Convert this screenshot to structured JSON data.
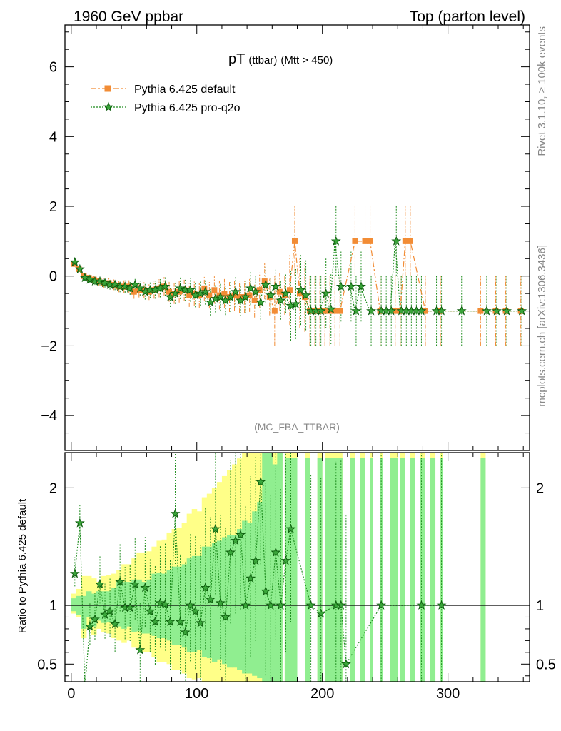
{
  "header": {
    "left": "1960 GeV ppbar",
    "right": "Top (parton level)"
  },
  "side": {
    "rivet": "Rivet 3.1.10, ≥ 100k events",
    "mcplots": "mcplots.cern.ch [arXiv:1306.3436]"
  },
  "chart_data": [
    {
      "type": "line",
      "title": "pT (ttbar) (Mtt > 450)",
      "title_main": "pT",
      "title_sub": "(ttbar)",
      "title_cut": "(Mtt > 450)",
      "watermark": "(MC_FBA_TTBAR)",
      "xlim": [
        -5,
        365
      ],
      "ylim": [
        -5,
        7.2
      ],
      "yticks": [
        -4,
        -2,
        0,
        2,
        4,
        6
      ],
      "ytick_labels": [
        "−4",
        "−2",
        "0",
        "2",
        "4",
        "6"
      ],
      "series": [
        {
          "name": "Pythia 6.425 default",
          "color": "#f28c35",
          "marker": "square",
          "points": [
            [
              2,
              0.35
            ],
            [
              6,
              0.2
            ],
            [
              10,
              0.0
            ],
            [
              14,
              -0.05
            ],
            [
              18,
              -0.1
            ],
            [
              22,
              -0.15
            ],
            [
              26,
              -0.2
            ],
            [
              30,
              -0.2
            ],
            [
              34,
              -0.25
            ],
            [
              38,
              -0.3
            ],
            [
              42,
              -0.3
            ],
            [
              46,
              -0.3
            ],
            [
              50,
              -0.45
            ],
            [
              54,
              -0.4
            ],
            [
              58,
              -0.4
            ],
            [
              62,
              -0.45
            ],
            [
              66,
              -0.4
            ],
            [
              70,
              -0.35
            ],
            [
              74,
              -0.3
            ],
            [
              78,
              -0.45
            ],
            [
              82,
              -0.5
            ],
            [
              86,
              -0.45
            ],
            [
              90,
              -0.4
            ],
            [
              94,
              -0.55
            ],
            [
              98,
              -0.5
            ],
            [
              102,
              -0.55
            ],
            [
              106,
              -0.35
            ],
            [
              110,
              -0.55
            ],
            [
              114,
              -0.4
            ],
            [
              118,
              -0.55
            ],
            [
              122,
              -0.5
            ],
            [
              126,
              -0.6
            ],
            [
              130,
              -0.55
            ],
            [
              134,
              -0.6
            ],
            [
              138,
              -0.6
            ],
            [
              142,
              -0.55
            ],
            [
              146,
              -0.7
            ],
            [
              150,
              -0.4
            ],
            [
              154,
              -0.15
            ],
            [
              158,
              -0.6
            ],
            [
              162,
              -1.0
            ],
            [
              166,
              -0.45
            ],
            [
              170,
              -0.55
            ],
            [
              174,
              -0.4
            ],
            [
              178,
              1.0
            ],
            [
              182,
              -0.5
            ],
            [
              186,
              -0.6
            ],
            [
              190,
              -1.0
            ],
            [
              194,
              -1.0
            ],
            [
              198,
              -1.0
            ],
            [
              202,
              -1.0
            ],
            [
              206,
              -1.0
            ],
            [
              210,
              -1.0
            ],
            [
              214,
              -1.0
            ],
            [
              226,
              1.0
            ],
            [
              234,
              1.0
            ],
            [
              238,
              1.0
            ],
            [
              246,
              -1.0
            ],
            [
              258,
              -1.0
            ],
            [
              262,
              -1.0
            ],
            [
              266,
              1.0
            ],
            [
              270,
              1.0
            ],
            [
              282,
              -1.0
            ],
            [
              294,
              -1.0
            ],
            [
              326,
              -1.0
            ],
            [
              338,
              -1.0
            ],
            [
              346,
              -1.0
            ],
            [
              358,
              -1.0
            ]
          ]
        },
        {
          "name": "Pythia 6.425 pro-q2o",
          "color": "#1a8a1a",
          "marker": "star",
          "points": [
            [
              2,
              0.4
            ],
            [
              6,
              0.2
            ],
            [
              10,
              -0.05
            ],
            [
              14,
              -0.1
            ],
            [
              18,
              -0.15
            ],
            [
              22,
              -0.15
            ],
            [
              26,
              -0.2
            ],
            [
              30,
              -0.25
            ],
            [
              34,
              -0.25
            ],
            [
              38,
              -0.3
            ],
            [
              42,
              -0.3
            ],
            [
              46,
              -0.35
            ],
            [
              50,
              -0.25
            ],
            [
              54,
              -0.35
            ],
            [
              58,
              -0.45
            ],
            [
              62,
              -0.4
            ],
            [
              66,
              -0.4
            ],
            [
              70,
              -0.35
            ],
            [
              74,
              -0.3
            ],
            [
              78,
              -0.6
            ],
            [
              82,
              -0.5
            ],
            [
              86,
              -0.35
            ],
            [
              90,
              -0.4
            ],
            [
              94,
              -0.4
            ],
            [
              98,
              -0.55
            ],
            [
              102,
              -0.5
            ],
            [
              106,
              -0.45
            ],
            [
              110,
              -0.75
            ],
            [
              114,
              -0.65
            ],
            [
              118,
              -0.6
            ],
            [
              122,
              -0.7
            ],
            [
              126,
              -0.6
            ],
            [
              130,
              -0.45
            ],
            [
              134,
              -0.7
            ],
            [
              138,
              -0.6
            ],
            [
              142,
              -0.35
            ],
            [
              146,
              -0.45
            ],
            [
              150,
              -0.75
            ],
            [
              154,
              -0.25
            ],
            [
              158,
              -0.55
            ],
            [
              162,
              -0.3
            ],
            [
              166,
              -0.7
            ],
            [
              170,
              -0.5
            ],
            [
              174,
              -0.85
            ],
            [
              178,
              -0.8
            ],
            [
              182,
              -0.4
            ],
            [
              186,
              -0.55
            ],
            [
              190,
              -1.0
            ],
            [
              194,
              -1.0
            ],
            [
              198,
              -1.0
            ],
            [
              202,
              -0.5
            ],
            [
              206,
              -0.95
            ],
            [
              210,
              1.0
            ],
            [
              214,
              -0.3
            ],
            [
              222,
              -0.3
            ],
            [
              226,
              -1.0
            ],
            [
              230,
              -0.3
            ],
            [
              238,
              -1.0
            ],
            [
              246,
              -1.0
            ],
            [
              250,
              -1.0
            ],
            [
              254,
              -1.0
            ],
            [
              258,
              1.0
            ],
            [
              262,
              -1.0
            ],
            [
              266,
              -1.0
            ],
            [
              270,
              -1.0
            ],
            [
              274,
              -1.0
            ],
            [
              278,
              -1.0
            ],
            [
              290,
              -1.0
            ],
            [
              294,
              -1.0
            ],
            [
              310,
              -1.0
            ],
            [
              330,
              -1.0
            ],
            [
              338,
              -1.0
            ],
            [
              346,
              -1.0
            ],
            [
              358,
              -1.0
            ]
          ]
        }
      ]
    },
    {
      "type": "line",
      "title": "Ratio to Pythia 6.425 default",
      "ylabel": "Ratio to Pythia 6.425 default",
      "xlim": [
        -5,
        365
      ],
      "ylim": [
        0.35,
        2.3
      ],
      "yticks": [
        0.5,
        1,
        2
      ],
      "ytick_labels": [
        "0.5",
        "1",
        "2"
      ],
      "xticks": [
        0,
        100,
        200,
        300
      ],
      "xtick_labels": [
        "0",
        "100",
        "200",
        "300"
      ],
      "reference": 1,
      "series": [
        {
          "name": "Pythia 6.425 pro-q2o / default",
          "points": [
            [
              2,
              1.27
            ],
            [
              6,
              1.7
            ],
            [
              10,
              0.3
            ],
            [
              14,
              0.82
            ],
            [
              18,
              0.88
            ],
            [
              22,
              1.18
            ],
            [
              26,
              0.92
            ],
            [
              30,
              0.95
            ],
            [
              34,
              0.84
            ],
            [
              38,
              1.2
            ],
            [
              42,
              0.98
            ],
            [
              46,
              0.98
            ],
            [
              50,
              1.18
            ],
            [
              54,
              0.62
            ],
            [
              58,
              1.15
            ],
            [
              62,
              0.95
            ],
            [
              66,
              0.86
            ],
            [
              70,
              1.02
            ],
            [
              74,
              1.01
            ],
            [
              78,
              0.86
            ],
            [
              82,
              1.78
            ],
            [
              86,
              0.86
            ],
            [
              90,
              0.77
            ],
            [
              94,
              1.0
            ],
            [
              98,
              0.95
            ],
            [
              102,
              0.85
            ],
            [
              106,
              1.15
            ],
            [
              110,
              1.05
            ],
            [
              114,
              1.65
            ],
            [
              118,
              1.02
            ],
            [
              122,
              0.9
            ],
            [
              126,
              1.45
            ],
            [
              130,
              1.55
            ],
            [
              134,
              1.6
            ],
            [
              138,
              1.0
            ],
            [
              142,
              1.23
            ],
            [
              146,
              1.38
            ],
            [
              150,
              2.05
            ],
            [
              154,
              1.12
            ],
            [
              158,
              1.0
            ],
            [
              162,
              1.45
            ],
            [
              166,
              1.0
            ],
            [
              170,
              1.38
            ],
            [
              174,
              1.65
            ],
            [
              190,
              1.0
            ],
            [
              198,
              0.93
            ],
            [
              210,
              1.0
            ],
            [
              214,
              1.0
            ],
            [
              218,
              0.5
            ],
            [
              246,
              1.0
            ],
            [
              278,
              1.0
            ],
            [
              294,
              1.0
            ]
          ]
        }
      ],
      "band_mc_stat_green": [
        [
          0.95,
          1.06
        ],
        [
          0.92,
          1.08
        ],
        [
          0.8,
          1.08
        ],
        [
          0.9,
          1.12
        ],
        [
          0.82,
          1.1
        ],
        [
          0.87,
          1.12
        ],
        [
          0.85,
          1.12
        ],
        [
          0.86,
          1.12
        ],
        [
          0.84,
          1.15
        ],
        [
          0.82,
          1.2
        ],
        [
          0.8,
          1.2
        ],
        [
          0.82,
          1.2
        ],
        [
          0.77,
          1.22
        ],
        [
          0.78,
          1.22
        ],
        [
          0.76,
          1.2
        ],
        [
          0.76,
          1.22
        ],
        [
          0.74,
          1.27
        ],
        [
          0.72,
          1.28
        ],
        [
          0.72,
          1.27
        ],
        [
          0.7,
          1.3
        ],
        [
          0.66,
          1.33
        ],
        [
          0.66,
          1.33
        ],
        [
          0.64,
          1.35
        ],
        [
          0.6,
          1.4
        ],
        [
          0.6,
          1.42
        ],
        [
          0.62,
          1.42
        ],
        [
          0.56,
          1.5
        ],
        [
          0.55,
          1.5
        ],
        [
          0.52,
          1.53
        ],
        [
          0.54,
          1.55
        ],
        [
          0.5,
          1.58
        ],
        [
          0.47,
          1.6
        ],
        [
          0.47,
          1.6
        ],
        [
          0.45,
          1.65
        ],
        [
          0.42,
          1.72
        ],
        [
          0.42,
          1.7
        ],
        [
          0.4,
          1.8
        ],
        [
          0.38,
          1.88
        ],
        [
          0.3,
          2.3
        ],
        [
          0.3,
          2.3
        ],
        [
          0.3,
          2.2
        ],
        [
          0.3,
          2.3
        ]
      ],
      "band_total_yellow": [
        [
          0.93,
          1.1
        ],
        [
          0.9,
          1.14
        ],
        [
          0.72,
          1.25
        ],
        [
          0.8,
          1.25
        ],
        [
          0.75,
          1.23
        ],
        [
          0.8,
          1.2
        ],
        [
          0.77,
          1.25
        ],
        [
          0.76,
          1.26
        ],
        [
          0.72,
          1.27
        ],
        [
          0.7,
          1.3
        ],
        [
          0.68,
          1.35
        ],
        [
          0.7,
          1.35
        ],
        [
          0.64,
          1.4
        ],
        [
          0.62,
          1.45
        ],
        [
          0.6,
          1.45
        ],
        [
          0.6,
          1.46
        ],
        [
          0.56,
          1.5
        ],
        [
          0.52,
          1.55
        ],
        [
          0.52,
          1.56
        ],
        [
          0.5,
          1.62
        ],
        [
          0.45,
          1.65
        ],
        [
          0.45,
          1.66
        ],
        [
          0.42,
          1.7
        ],
        [
          0.38,
          1.78
        ],
        [
          0.37,
          1.82
        ],
        [
          0.38,
          1.8
        ],
        [
          0.33,
          1.92
        ],
        [
          0.32,
          1.95
        ],
        [
          0.3,
          2.0
        ],
        [
          0.3,
          2.05
        ],
        [
          0.3,
          2.1
        ],
        [
          0.3,
          2.15
        ],
        [
          0.3,
          2.2
        ],
        [
          0.3,
          2.25
        ],
        [
          0.3,
          2.3
        ],
        [
          0.3,
          2.3
        ],
        [
          0.3,
          2.3
        ],
        [
          0.3,
          2.3
        ],
        [
          0.3,
          2.3
        ],
        [
          0.3,
          2.3
        ],
        [
          0.3,
          2.3
        ],
        [
          0.3,
          2.3
        ]
      ]
    }
  ]
}
